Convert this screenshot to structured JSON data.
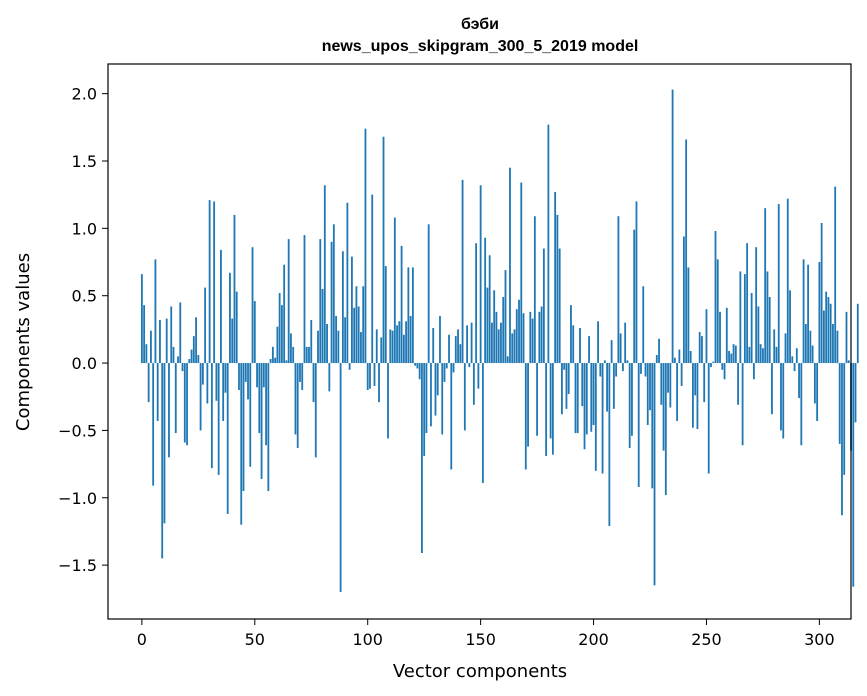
{
  "chart_data": {
    "type": "bar",
    "title": "бэби",
    "subtitle": "news_upos_skipgram_300_5_2019 model",
    "xlabel": "Vector components",
    "ylabel": "Components values",
    "xlim": [
      -15,
      314
    ],
    "ylim": [
      -1.9,
      2.22
    ],
    "xticks": [
      0,
      50,
      100,
      150,
      200,
      250,
      300
    ],
    "yticks": [
      -1.5,
      -1.0,
      -0.5,
      0.0,
      0.5,
      1.0,
      1.5,
      2.0
    ],
    "ytick_labels": [
      "−1.5",
      "−1.0",
      "−0.5",
      "0.0",
      "0.5",
      "1.0",
      "1.5",
      "2.0"
    ],
    "grid": false,
    "bar_color": "#1f77b4",
    "values": [
      0.66,
      0.43,
      0.14,
      -0.29,
      0.24,
      -0.91,
      0.77,
      -0.43,
      0.32,
      -1.45,
      -1.19,
      0.33,
      -0.7,
      0.42,
      0.12,
      -0.52,
      0.05,
      0.45,
      -0.06,
      -0.59,
      -0.61,
      0.03,
      0.1,
      0.2,
      0.34,
      0.06,
      -0.5,
      -0.16,
      0.56,
      -0.3,
      1.21,
      -0.78,
      1.2,
      -0.28,
      -0.83,
      0.84,
      -0.43,
      -0.22,
      -1.12,
      0.67,
      0.33,
      1.1,
      0.53,
      -0.2,
      -1.2,
      -0.95,
      -0.14,
      -0.27,
      -0.77,
      0.86,
      0.46,
      -0.18,
      -0.52,
      -0.86,
      -0.18,
      -0.61,
      -0.95,
      0.03,
      0.12,
      0.04,
      0.27,
      0.52,
      0.43,
      0.73,
      0.02,
      0.92,
      0.22,
      0.12,
      -0.53,
      -0.63,
      -0.14,
      -0.2,
      0.95,
      0.12,
      0.12,
      0.32,
      -0.29,
      -0.7,
      0.24,
      0.92,
      0.55,
      1.32,
      0.29,
      -0.21,
      0.9,
      1.03,
      0.35,
      0.24,
      -1.7,
      0.83,
      0.34,
      1.19,
      -0.05,
      0.79,
      0.41,
      0.57,
      0.42,
      0.23,
      0.57,
      1.74,
      -0.2,
      -0.19,
      1.25,
      -0.17,
      0.25,
      -0.29,
      0.19,
      1.68,
      0.72,
      -0.56,
      0.25,
      0.24,
      1.08,
      0.28,
      0.31,
      0.87,
      0.21,
      0.31,
      0.71,
      0.35,
      0.71,
      -0.02,
      -0.04,
      -0.12,
      -1.41,
      -0.69,
      -0.52,
      1.03,
      -0.47,
      0.26,
      -0.39,
      -0.24,
      0.35,
      -0.53,
      -0.14,
      -0.04,
      0.21,
      -0.79,
      -0.07,
      0.2,
      0.25,
      0.14,
      1.36,
      -0.5,
      0.28,
      -0.03,
      0.3,
      -0.31,
      0.89,
      -0.19,
      1.32,
      -0.89,
      0.93,
      0.56,
      0.8,
      0.3,
      0.54,
      0.38,
      0.25,
      0.3,
      0.49,
      0.69,
      0.05,
      1.45,
      0.22,
      0.25,
      0.4,
      0.47,
      1.34,
      0.37,
      -0.79,
      -0.62,
      0.38,
      0.33,
      1.09,
      -0.54,
      0.38,
      0.42,
      0.85,
      -0.69,
      1.77,
      -0.56,
      -0.68,
      1.27,
      1.1,
      0.85,
      -0.38,
      -0.05,
      -0.34,
      -0.23,
      0.43,
      0.28,
      -0.52,
      -0.52,
      0.26,
      -0.32,
      -0.64,
      -0.53,
      0.2,
      -0.51,
      -0.46,
      -0.8,
      0.31,
      -0.1,
      -0.82,
      0.02,
      -0.36,
      -1.21,
      0.17,
      -0.34,
      -0.1,
      1.09,
      0.22,
      -0.06,
      0.3,
      0.02,
      -0.63,
      -0.54,
      0.99,
      1.2,
      -0.92,
      -0.08,
      0.57,
      -0.1,
      -0.46,
      -0.35,
      -0.93,
      -1.65,
      0.06,
      0.18,
      -0.31,
      -0.65,
      -0.98,
      -0.22,
      -0.33,
      2.03,
      0.04,
      -0.43,
      0.1,
      -0.17,
      0.94,
      1.66,
      0.71,
      0.09,
      -0.48,
      -0.24,
      -0.49,
      0.23,
      0.2,
      -0.29,
      0.4,
      -0.82,
      -0.03,
      0.01,
      0.98,
      0.77,
      0.38,
      -0.05,
      -0.12,
      0.41,
      0.09,
      0.07,
      0.14,
      0.13,
      -0.31,
      0.68,
      -0.61,
      0.66,
      0.89,
      0.12,
      0.52,
      -0.12,
      0.86,
      0.42,
      0.14,
      0.11,
      1.15,
      0.68,
      0.49,
      -0.38,
      0.25,
      0.12,
      1.18,
      -0.5,
      -0.56,
      0.22,
      1.22,
      0.54,
      0.05,
      -0.06,
      0.11,
      -0.26,
      -0.61,
      0.77,
      0.29,
      0.73,
      0.24,
      0.13,
      -0.3,
      -0.43,
      0.75,
      1.04,
      0.39,
      0.53,
      0.49,
      0.44,
      0.29,
      1.31,
      0.24,
      -0.6,
      -1.13,
      -0.83,
      0.38,
      0.02,
      -0.65,
      -1.66,
      -0.44,
      0.44
    ]
  }
}
